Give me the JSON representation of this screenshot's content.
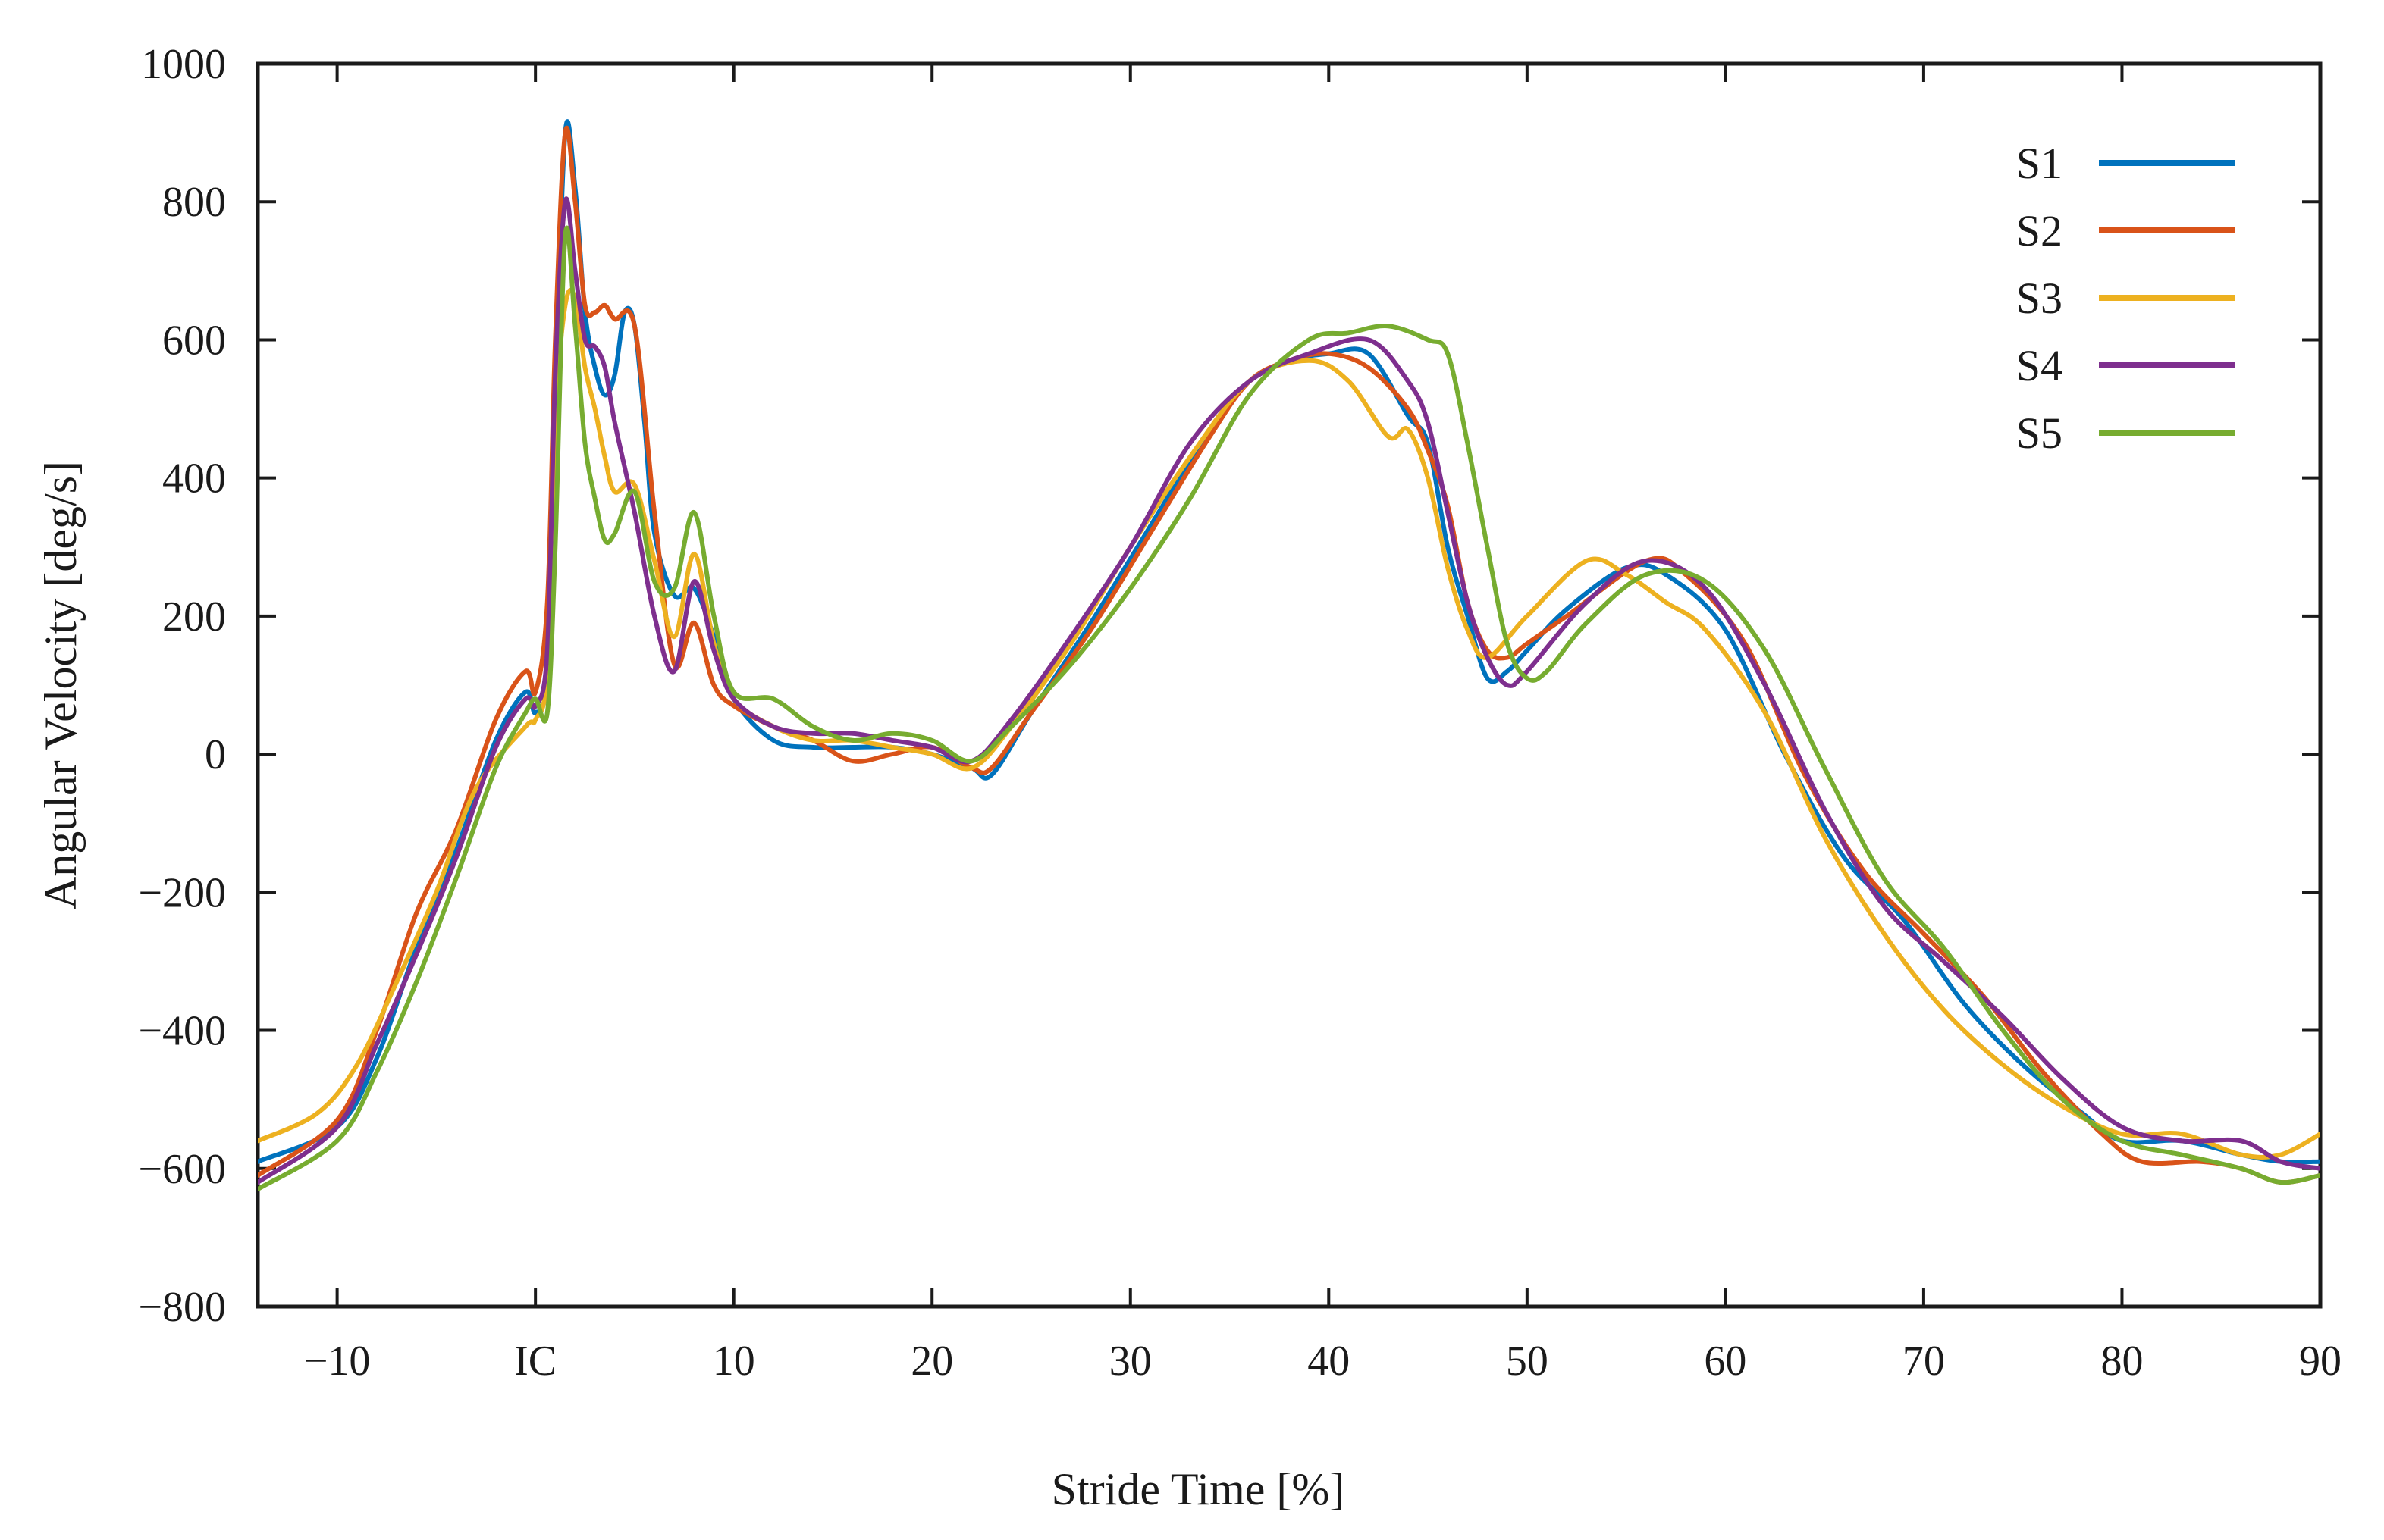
{
  "chart_data": {
    "type": "line",
    "title": "",
    "xlabel": "Stride Time [%]",
    "ylabel": "Angular Velocity [deg/s]",
    "xlim": [
      -14,
      90
    ],
    "ylim": [
      -800,
      1000
    ],
    "xticks": [
      {
        "value": -10,
        "label": "−10"
      },
      {
        "value": 0,
        "label": "IC"
      },
      {
        "value": 10,
        "label": "10"
      },
      {
        "value": 20,
        "label": "20"
      },
      {
        "value": 30,
        "label": "30"
      },
      {
        "value": 40,
        "label": "40"
      },
      {
        "value": 50,
        "label": "50"
      },
      {
        "value": 60,
        "label": "60"
      },
      {
        "value": 70,
        "label": "70"
      },
      {
        "value": 80,
        "label": "80"
      },
      {
        "value": 90,
        "label": "90"
      }
    ],
    "yticks": [
      {
        "value": 1000,
        "label": "1000"
      },
      {
        "value": 800,
        "label": "800"
      },
      {
        "value": 600,
        "label": "600"
      },
      {
        "value": 400,
        "label": "400"
      },
      {
        "value": 200,
        "label": "200"
      },
      {
        "value": 0,
        "label": "0"
      },
      {
        "value": -200,
        "label": "−200"
      },
      {
        "value": -400,
        "label": "−400"
      },
      {
        "value": -600,
        "label": "−600"
      },
      {
        "value": -800,
        "label": "−800"
      }
    ],
    "grid": false,
    "legend_position": "top-right",
    "series": [
      {
        "name": "S1",
        "color": "#0072BD",
        "x": [
          -14,
          -10,
          -8,
          -6,
          -4,
          -2,
          -0.5,
          0,
          0.6,
          1.0,
          1.5,
          2.0,
          2.5,
          3.0,
          3.5,
          4.0,
          4.5,
          5.0,
          5.5,
          6.0,
          7.0,
          8.0,
          9.0,
          10.0,
          12.0,
          14.0,
          16.0,
          18.0,
          20.0,
          22.0,
          23.0,
          25.0,
          28.0,
          31.0,
          34.0,
          36.0,
          38.0,
          40.0,
          42.0,
          44.0,
          45.0,
          46.0,
          47.0,
          48.0,
          49.0,
          50.0,
          52.0,
          55.0,
          57.0,
          60.0,
          63.0,
          66.0,
          69.0,
          72.0,
          75.0,
          78.0,
          80.0,
          83.0,
          86.0,
          88.0,
          90.0
        ],
        "y": [
          -590,
          -540,
          -440,
          -280,
          -140,
          20,
          90,
          60,
          120,
          500,
          900,
          820,
          640,
          560,
          520,
          550,
          640,
          620,
          480,
          320,
          230,
          240,
          170,
          80,
          20,
          10,
          10,
          10,
          0,
          -20,
          -30,
          60,
          190,
          330,
          470,
          540,
          570,
          580,
          580,
          490,
          450,
          300,
          200,
          110,
          120,
          150,
          210,
          270,
          260,
          180,
          0,
          -150,
          -240,
          -360,
          -450,
          -520,
          -560,
          -560,
          -580,
          -590,
          -590
        ]
      },
      {
        "name": "S2",
        "color": "#D95319",
        "x": [
          -14,
          -10,
          -8,
          -6,
          -4,
          -2,
          -0.5,
          0,
          0.6,
          1.0,
          1.5,
          2.0,
          2.5,
          3.0,
          3.5,
          4.0,
          5.0,
          6.0,
          7.0,
          8.0,
          9.0,
          10.0,
          12.0,
          14.0,
          16.0,
          18.0,
          20.0,
          22.0,
          23.0,
          25.0,
          28.0,
          31.0,
          34.0,
          36.0,
          38.0,
          40.0,
          42.0,
          44.0,
          45.0,
          46.0,
          47.0,
          48.0,
          49.0,
          50.0,
          52.0,
          56.0,
          58.0,
          61.0,
          64.0,
          67.0,
          70.0,
          73.0,
          76.0,
          79.0,
          81.0,
          84.0,
          86.0,
          88.0,
          90.0
        ],
        "y": [
          -610,
          -530,
          -400,
          -230,
          -110,
          50,
          120,
          90,
          220,
          600,
          900,
          800,
          650,
          640,
          650,
          630,
          620,
          350,
          130,
          190,
          100,
          70,
          40,
          20,
          -10,
          0,
          10,
          -20,
          -20,
          60,
          180,
          320,
          460,
          540,
          570,
          580,
          560,
          500,
          440,
          360,
          220,
          150,
          140,
          160,
          200,
          280,
          260,
          160,
          -30,
          -170,
          -260,
          -350,
          -460,
          -550,
          -590,
          -590,
          -600,
          -620,
          -610
        ]
      },
      {
        "name": "S3",
        "color": "#EDB120",
        "x": [
          -14,
          -11,
          -9,
          -7,
          -5,
          -3,
          -0.5,
          0,
          0.6,
          1.0,
          1.5,
          2.0,
          2.5,
          3.0,
          3.5,
          4.0,
          5.0,
          6.0,
          7.0,
          8.0,
          9.0,
          10.0,
          12.0,
          14.0,
          16.0,
          18.0,
          20.0,
          22.0,
          24.0,
          27.0,
          30.0,
          33.0,
          36.0,
          39.0,
          41.0,
          43.0,
          44.0,
          45.0,
          46.0,
          47.0,
          48.0,
          50.0,
          53.0,
          55.0,
          57.0,
          59.0,
          62.0,
          65.0,
          68.0,
          71.0,
          74.0,
          77.0,
          80.0,
          83.0,
          86.0,
          88.0,
          90.0
        ],
        "y": [
          -560,
          -520,
          -450,
          -330,
          -200,
          -50,
          40,
          50,
          120,
          480,
          650,
          660,
          560,
          500,
          430,
          380,
          390,
          280,
          170,
          290,
          160,
          80,
          40,
          20,
          20,
          10,
          0,
          -20,
          40,
          160,
          300,
          430,
          540,
          570,
          540,
          460,
          470,
          400,
          270,
          180,
          140,
          200,
          280,
          260,
          220,
          180,
          60,
          -120,
          -260,
          -370,
          -450,
          -510,
          -550,
          -550,
          -580,
          -580,
          -550
        ]
      },
      {
        "name": "S4",
        "color": "#7E2F8E",
        "x": [
          -14,
          -10,
          -8,
          -6,
          -4,
          -2,
          -0.5,
          0,
          0.6,
          1.0,
          1.5,
          2.0,
          2.5,
          3.0,
          3.5,
          4.0,
          5.0,
          6.0,
          7.0,
          8.0,
          9.0,
          10.0,
          12.0,
          14.0,
          16.0,
          18.0,
          20.0,
          22.0,
          24.0,
          27.0,
          30.0,
          33.0,
          36.0,
          39.0,
          42.0,
          44.0,
          45.0,
          46.0,
          47.0,
          48.0,
          49.0,
          50.0,
          53.0,
          56.0,
          59.0,
          62.0,
          65.0,
          68.0,
          71.0,
          74.0,
          77.0,
          80.0,
          83.0,
          86.0,
          88.0,
          90.0
        ],
        "y": [
          -620,
          -540,
          -420,
          -290,
          -150,
          10,
          80,
          70,
          150,
          550,
          800,
          700,
          600,
          590,
          560,
          480,
          350,
          200,
          120,
          250,
          150,
          80,
          40,
          30,
          30,
          20,
          10,
          -10,
          50,
          170,
          300,
          450,
          540,
          580,
          600,
          540,
          480,
          350,
          220,
          140,
          100,
          120,
          220,
          280,
          240,
          100,
          -80,
          -220,
          -300,
          -380,
          -470,
          -540,
          -560,
          -560,
          -590,
          -600
        ]
      },
      {
        "name": "S5",
        "color": "#77AC30",
        "x": [
          -14,
          -10,
          -8,
          -6,
          -4,
          -2,
          -0.5,
          0,
          0.6,
          1.0,
          1.5,
          2.0,
          2.5,
          3.0,
          3.5,
          4.0,
          5.0,
          6.0,
          7.0,
          8.0,
          9.0,
          10.0,
          12.0,
          14.0,
          16.0,
          18.0,
          20.0,
          22.0,
          24.0,
          27.0,
          30.0,
          33.0,
          36.0,
          39.0,
          41.0,
          43.0,
          45.0,
          46.0,
          47.0,
          48.0,
          49.0,
          50.0,
          51.0,
          53.0,
          56.0,
          59.0,
          62.0,
          65.0,
          68.0,
          71.0,
          74.0,
          77.0,
          80.0,
          83.0,
          86.0,
          88.0,
          90.0
        ],
        "y": [
          -630,
          -560,
          -460,
          -330,
          -180,
          -20,
          60,
          80,
          60,
          300,
          750,
          620,
          450,
          370,
          310,
          320,
          380,
          250,
          240,
          350,
          200,
          90,
          80,
          40,
          20,
          30,
          20,
          -10,
          40,
          130,
          240,
          370,
          520,
          600,
          610,
          620,
          600,
          580,
          450,
          300,
          160,
          110,
          120,
          190,
          260,
          250,
          150,
          -20,
          -180,
          -280,
          -400,
          -500,
          -560,
          -580,
          -600,
          -620,
          -610
        ]
      }
    ]
  }
}
